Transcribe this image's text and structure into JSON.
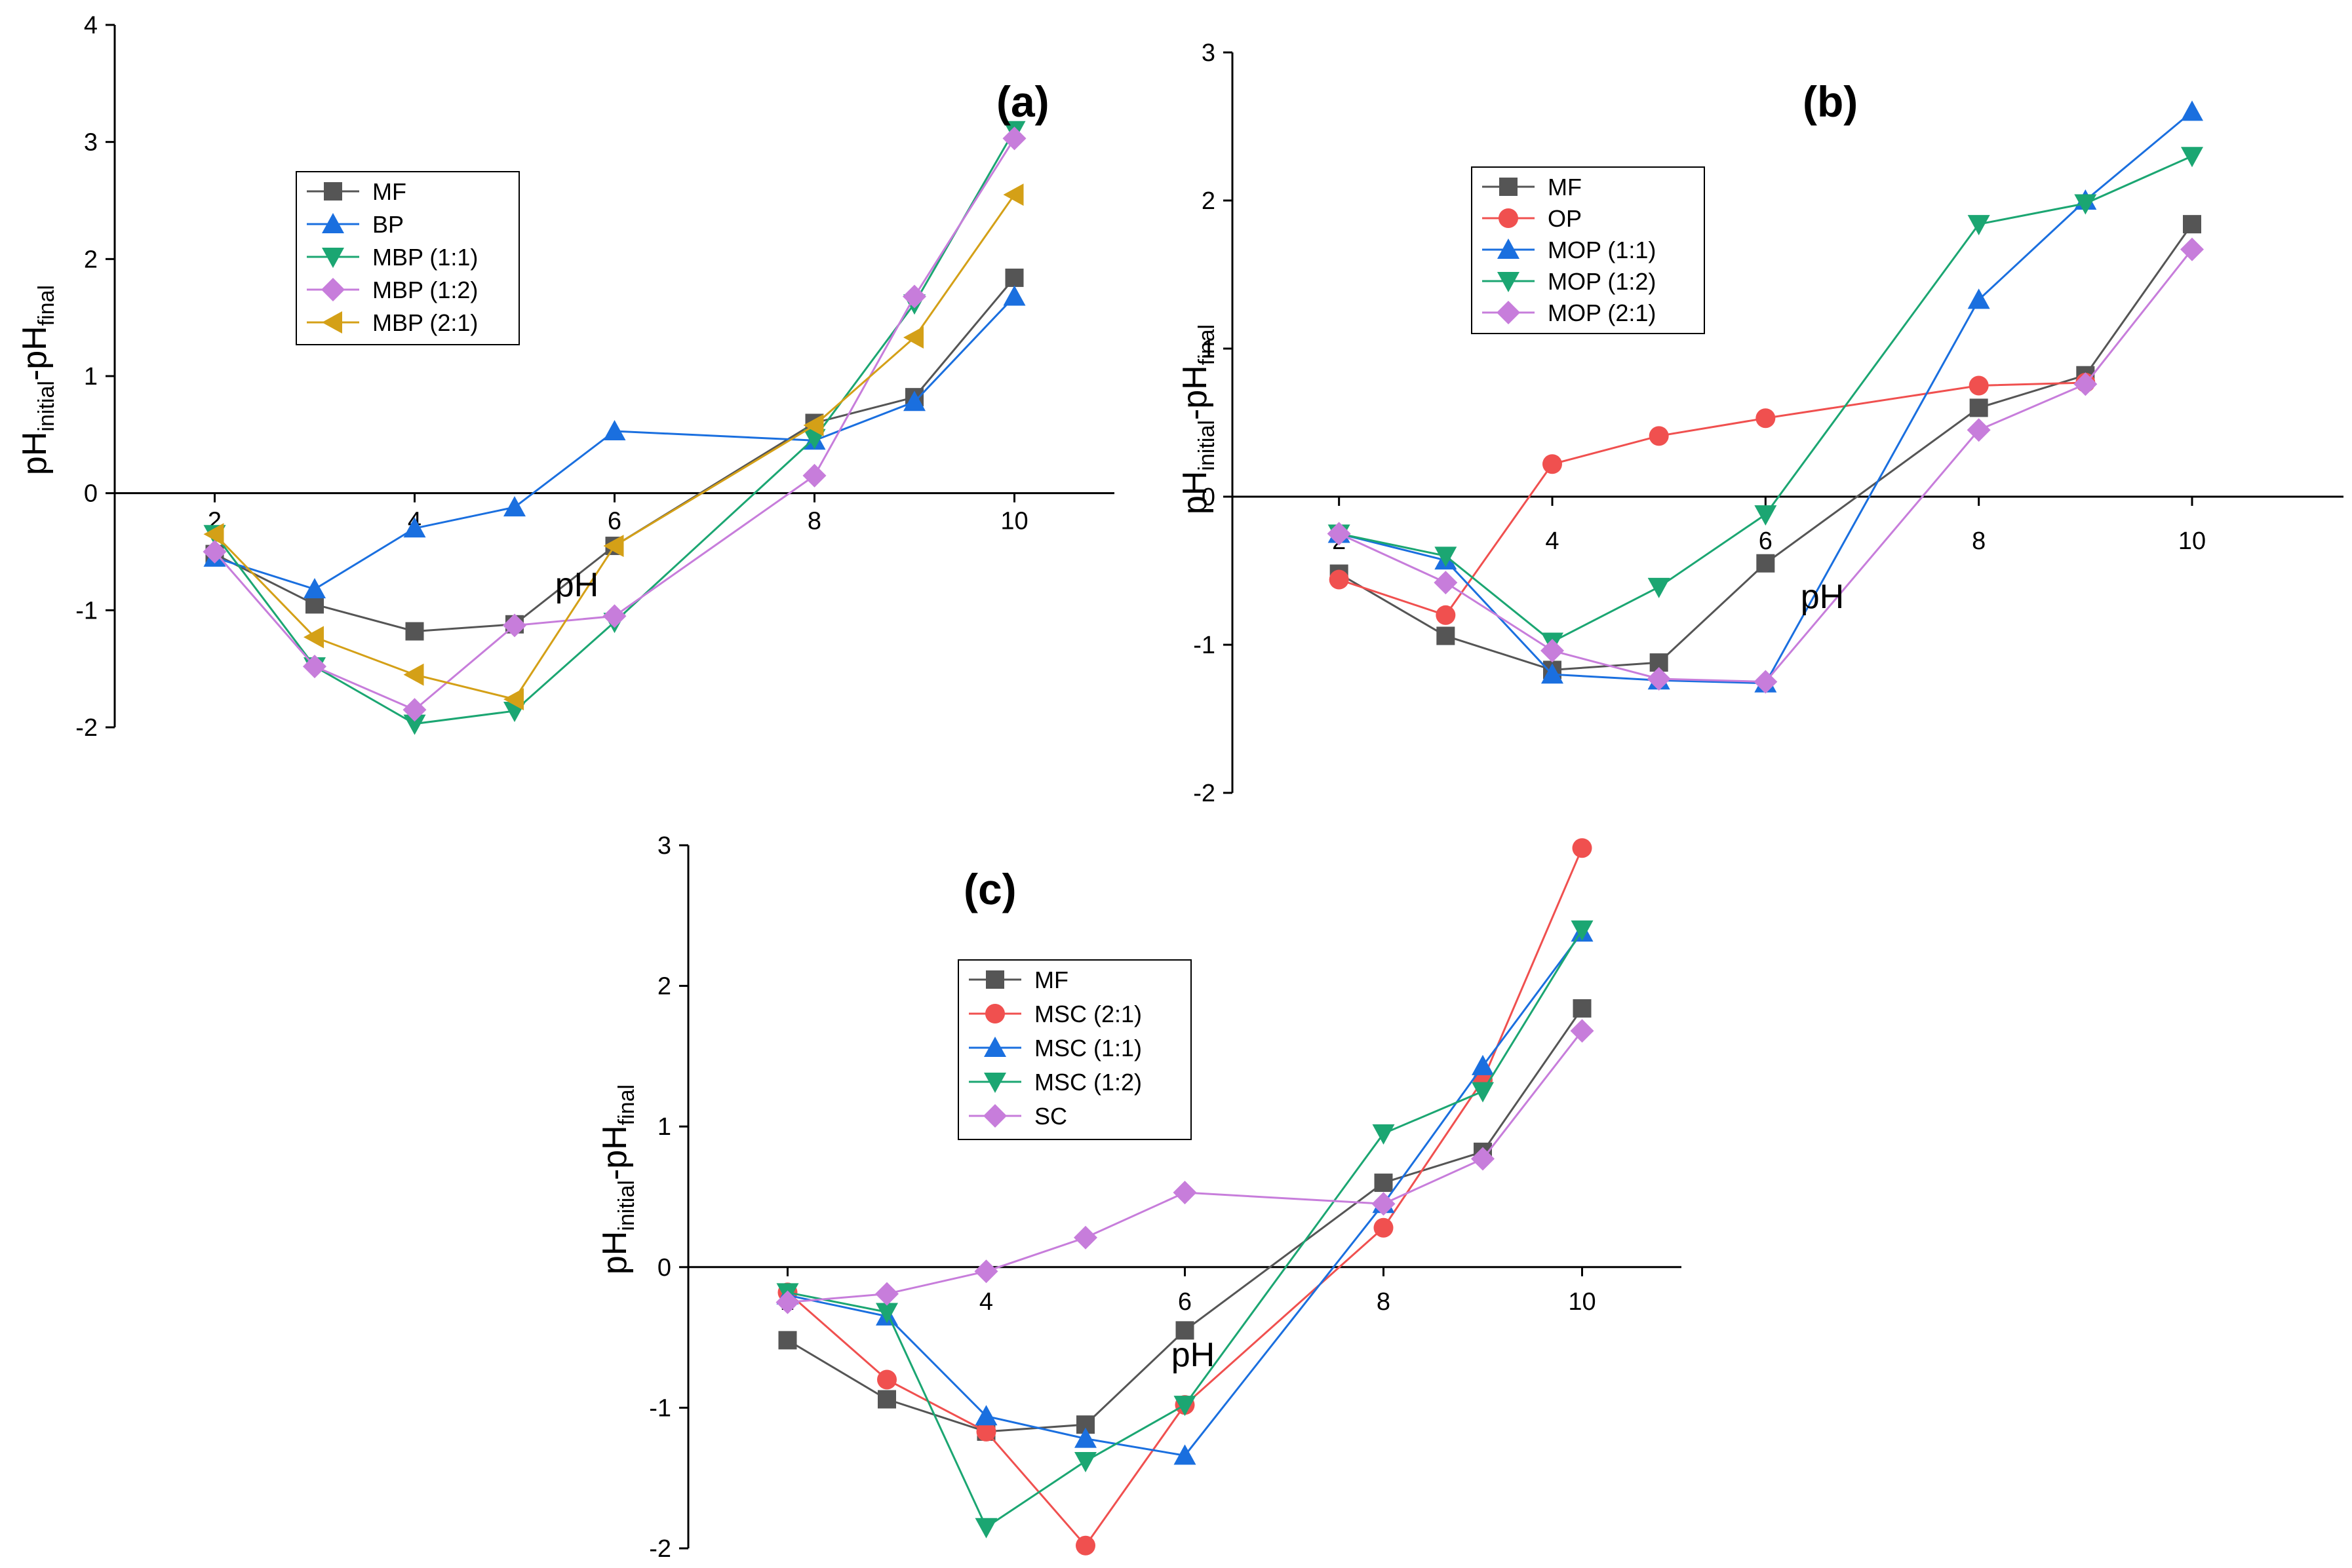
{
  "chart_data": [
    {
      "type": "line",
      "panel_label": "(a)",
      "xlabel": "pH",
      "ylabel_main": "pH",
      "ylabel_sub1": "initial",
      "ylabel_mid": "-pH",
      "ylabel_sub2": "final",
      "xlim": [
        1.0,
        11.0
      ],
      "ylim": [
        -2,
        4
      ],
      "xticks": [
        2,
        4,
        6,
        8,
        10
      ],
      "yticks": [
        -2,
        -1,
        0,
        1,
        2,
        3,
        4
      ],
      "x": [
        2,
        3,
        4,
        5,
        6,
        8,
        9,
        10
      ],
      "legend_position": "upper-left",
      "series": [
        {
          "name": "MF",
          "color": "#555555",
          "marker": "square",
          "values": [
            -0.52,
            -0.95,
            -1.18,
            -1.12,
            -0.45,
            0.6,
            0.82,
            1.84
          ]
        },
        {
          "name": "BP",
          "color": "#1a6fdf",
          "marker": "triangle-up",
          "values": [
            -0.55,
            -0.82,
            -0.3,
            -0.12,
            0.53,
            0.45,
            0.78,
            1.68
          ]
        },
        {
          "name": "MBP (1:1)",
          "color": "#1ba672",
          "marker": "triangle-down",
          "values": [
            -0.35,
            -1.48,
            -1.97,
            -1.86,
            -1.1,
            0.47,
            1.62,
            3.1
          ]
        },
        {
          "name": "MBP (1:2)",
          "color": "#c77ddb",
          "marker": "diamond",
          "values": [
            -0.5,
            -1.48,
            -1.85,
            -1.13,
            -1.05,
            0.15,
            1.68,
            3.03
          ]
        },
        {
          "name": "MBP (2:1)",
          "color": "#d4a017",
          "marker": "triangle-left",
          "values": [
            -0.35,
            -1.23,
            -1.55,
            -1.76,
            -0.45,
            0.58,
            1.33,
            2.55
          ]
        }
      ]
    },
    {
      "type": "line",
      "panel_label": "(b)",
      "xlabel": "pH",
      "ylabel_main": "pH",
      "ylabel_sub1": "initial",
      "ylabel_mid": "-pH",
      "ylabel_sub2": "final",
      "xlim": [
        1.0,
        11.5
      ],
      "ylim": [
        -2,
        3
      ],
      "xticks": [
        2,
        4,
        6,
        8,
        10
      ],
      "yticks": [
        -2,
        -1,
        0,
        1,
        2,
        3
      ],
      "x": [
        2,
        3,
        4,
        5,
        6,
        8,
        9,
        10
      ],
      "legend_position": "upper-left",
      "series": [
        {
          "name": "MF",
          "color": "#555555",
          "marker": "square",
          "values": [
            -0.52,
            -0.94,
            -1.17,
            -1.12,
            -0.45,
            0.6,
            0.82,
            1.84
          ]
        },
        {
          "name": "OP",
          "color": "#f0504f",
          "marker": "circle",
          "values": [
            -0.56,
            -0.8,
            0.22,
            0.41,
            0.53,
            0.75,
            0.77,
            null
          ]
        },
        {
          "name": "MOP (1:1)",
          "color": "#1a6fdf",
          "marker": "triangle-up",
          "values": [
            -0.25,
            -0.43,
            -1.2,
            -1.24,
            -1.26,
            1.33,
            2.0,
            2.6
          ]
        },
        {
          "name": "MOP (1:2)",
          "color": "#1ba672",
          "marker": "triangle-down",
          "values": [
            -0.25,
            -0.4,
            -0.98,
            -0.61,
            -0.12,
            1.84,
            1.98,
            2.3
          ]
        },
        {
          "name": "MOP (2:1)",
          "color": "#c77ddb",
          "marker": "diamond",
          "values": [
            -0.25,
            -0.58,
            -1.04,
            -1.23,
            -1.25,
            0.45,
            0.76,
            1.67
          ]
        }
      ]
    },
    {
      "type": "line",
      "panel_label": "(c)",
      "xlabel": "pH",
      "ylabel_main": "pH",
      "ylabel_sub1": "initial",
      "ylabel_mid": "-pH",
      "ylabel_sub2": "final",
      "xlim": [
        1.0,
        11.0
      ],
      "ylim": [
        -2,
        3
      ],
      "xticks": [
        2,
        4,
        6,
        8,
        10
      ],
      "yticks": [
        -2,
        -1,
        0,
        1,
        2,
        3
      ],
      "x": [
        2,
        3,
        4,
        5,
        6,
        8,
        9,
        10
      ],
      "legend_position": "upper-left",
      "series": [
        {
          "name": "MF",
          "color": "#555555",
          "marker": "square",
          "values": [
            -0.52,
            -0.94,
            -1.17,
            -1.12,
            -0.45,
            0.6,
            0.82,
            1.84
          ]
        },
        {
          "name": "MSC (2:1)",
          "color": "#f0504f",
          "marker": "circle",
          "values": [
            -0.18,
            -0.8,
            -1.17,
            -1.98,
            -0.98,
            0.28,
            1.33,
            2.98
          ]
        },
        {
          "name": "MSC (1:1)",
          "color": "#1a6fdf",
          "marker": "triangle-up",
          "values": [
            -0.2,
            -0.35,
            -1.06,
            -1.22,
            -1.34,
            0.45,
            1.43,
            2.38
          ]
        },
        {
          "name": "MSC (1:2)",
          "color": "#1ba672",
          "marker": "triangle-down",
          "values": [
            -0.18,
            -0.32,
            -1.85,
            -1.38,
            -0.98,
            0.95,
            1.25,
            2.4
          ]
        },
        {
          "name": "SC",
          "color": "#c77ddb",
          "marker": "diamond",
          "values": [
            -0.25,
            -0.19,
            -0.03,
            0.21,
            0.53,
            0.45,
            0.77,
            1.68
          ]
        }
      ]
    }
  ]
}
